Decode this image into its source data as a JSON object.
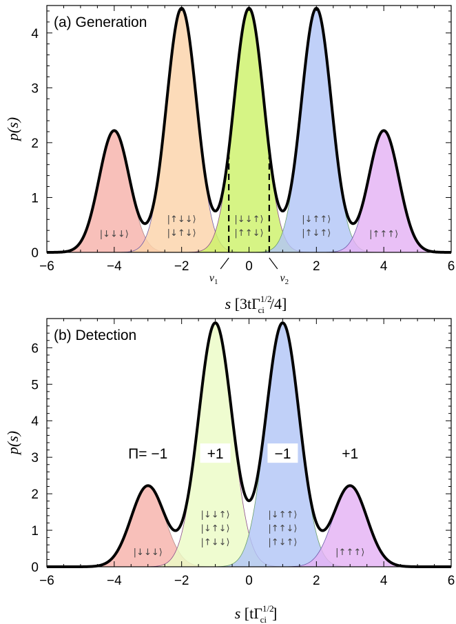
{
  "chart_data": [
    {
      "type": "area",
      "title": "(a) Generation",
      "ylabel": "p(s)",
      "xlabel_main": "s",
      "xlabel_units": "[3tΓ",
      "xlabel_sup": "1/2",
      "xlabel_sub": "ci",
      "xlabel_tail": "/4]",
      "xlim": [
        -6,
        6
      ],
      "ylim": [
        0,
        4.5
      ],
      "xticks": [
        -6,
        -4,
        -2,
        0,
        2,
        4,
        6
      ],
      "yticks": [
        0,
        1,
        2,
        3,
        4
      ],
      "sigma": 0.45,
      "series": [
        {
          "center": -4,
          "peak": 2.22,
          "color": "#f7b2ab",
          "edge": "#b08a88",
          "labels": [
            "|↓↓↓⟩"
          ]
        },
        {
          "center": -2,
          "peak": 4.45,
          "color": "#fbd3a9",
          "edge": "#6a5aa8",
          "labels": [
            "|↑↓↓⟩",
            "|↓↑↓⟩"
          ]
        },
        {
          "center": 0,
          "peak": 4.45,
          "color": "#cdf26a",
          "edge": "#8a4a8a",
          "labels": [
            "|↓↓↑⟩",
            "|↑↑↓⟩"
          ]
        },
        {
          "center": 2,
          "peak": 4.45,
          "color": "#b2c6f7",
          "edge": "#6aa06a",
          "labels": [
            "|↓↑↑⟩",
            "|↑↓↑⟩"
          ]
        },
        {
          "center": 4,
          "peak": 2.22,
          "color": "#e4b2f4",
          "edge": "#6a5aa8",
          "labels": [
            "|↑↑↑⟩"
          ]
        }
      ],
      "thresholds": [
        {
          "x": -0.6,
          "label": "ν",
          "sub": "1"
        },
        {
          "x": 0.6,
          "label": "ν",
          "sub": "2"
        }
      ]
    },
    {
      "type": "area",
      "title": "(b) Detection",
      "ylabel": "p(s)",
      "xlabel_main": "s",
      "xlabel_units": "[tΓ",
      "xlabel_sup": "1/2",
      "xlabel_sub": "ci",
      "xlabel_tail": "]",
      "xlim": [
        -6,
        6
      ],
      "ylim": [
        0,
        6.8
      ],
      "xticks": [
        -6,
        -4,
        -2,
        0,
        2,
        4,
        6
      ],
      "yticks": [
        0,
        1,
        2,
        3,
        4,
        5,
        6
      ],
      "sigma": 0.5,
      "series": [
        {
          "center": -3,
          "peak": 2.22,
          "color": "#f7b2ab",
          "edge": "#b08a88",
          "labels": [
            "|↓↓↓⟩"
          ],
          "parity": "Π= −1",
          "parity_box": false
        },
        {
          "center": -1,
          "peak": 6.68,
          "color": "#ecfbc6",
          "edge": "#8a4a8a",
          "labels": [
            "|↓↓↑⟩",
            "|↓↑↓⟩",
            "|↑↓↓⟩"
          ],
          "parity": "+1",
          "parity_box": true
        },
        {
          "center": 1,
          "peak": 6.68,
          "color": "#b2c6f7",
          "edge": "#6aa06a",
          "labels": [
            "|↓↑↑⟩",
            "|↑↑↓⟩",
            "|↑↓↑⟩"
          ],
          "parity": "−1",
          "parity_box": true
        },
        {
          "center": 3,
          "peak": 2.22,
          "color": "#e4b2f4",
          "edge": "#6a5aa8",
          "labels": [
            "|↑↑↑⟩"
          ],
          "parity": "+1",
          "parity_box": false
        }
      ]
    }
  ]
}
